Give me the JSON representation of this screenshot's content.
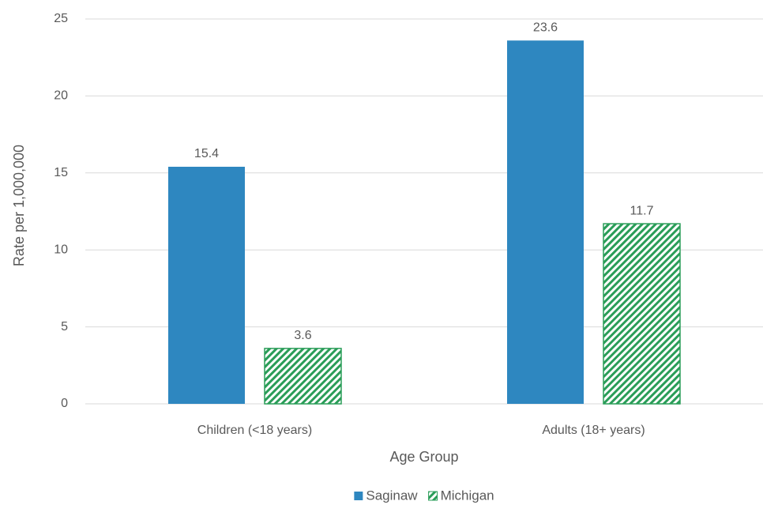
{
  "chart_data": {
    "type": "bar",
    "x_label": "Age Group",
    "y_label": "Rate per 1,000,000",
    "categories": [
      "Children (<18 years)",
      "Adults (18+ years)"
    ],
    "series": [
      {
        "name": "Saginaw",
        "color": "#2e87c0",
        "values": [
          15.4,
          23.6
        ]
      },
      {
        "name": "Michigan",
        "color": "#2a9d58",
        "pattern": "diagonal-hatch",
        "values": [
          3.6,
          11.7
        ]
      }
    ],
    "ylim": [
      0,
      25
    ],
    "yticks": [
      0,
      5,
      10,
      15,
      20,
      25
    ],
    "grid": true,
    "legend": "bottom"
  }
}
